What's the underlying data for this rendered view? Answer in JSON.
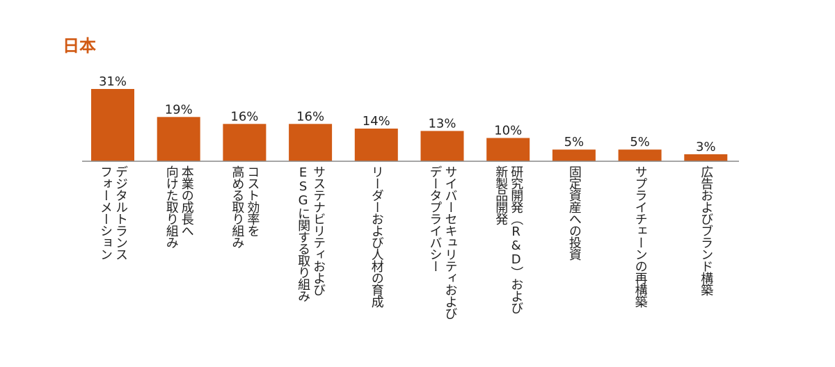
{
  "chart_data": {
    "type": "bar",
    "title": "日本",
    "categories": [
      "デジタルトランス\nフォーメーション",
      "本業の成長へ\n向けた取り組み",
      "コスト効率を\n高める取り組み",
      "サステナビリティおよび\nESGに関する取り組み",
      "リーダーおよび人材の育成",
      "サイバーセキュリティおよび\nデータプライバシー",
      "研究開発（R&D）および\n新製品開発",
      "固定資産への投資",
      "サプライチェーンの再構築",
      "広告およびブランド構築"
    ],
    "values": [
      31,
      19,
      16,
      16,
      14,
      13,
      10,
      5,
      5,
      3
    ],
    "value_labels": [
      "31%",
      "19%",
      "16%",
      "16%",
      "14%",
      "13%",
      "10%",
      "5%",
      "5%",
      "3%"
    ],
    "xlabel": "",
    "ylabel": "",
    "ylim": [
      0,
      31
    ],
    "grid": false,
    "colors": {
      "bar": "#d15a14",
      "title": "#d15a14",
      "axis": "#888888",
      "text": "#222222"
    }
  }
}
